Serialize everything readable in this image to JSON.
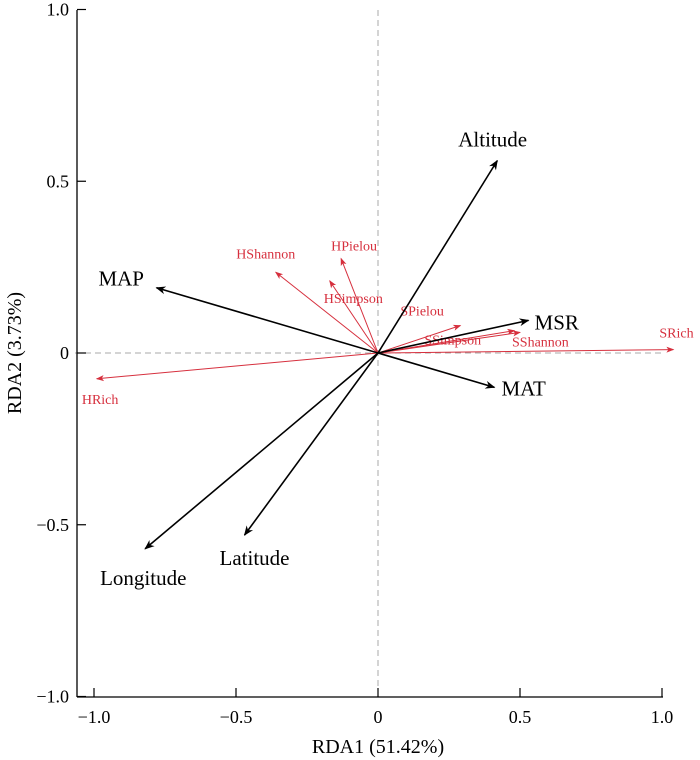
{
  "chart_data": {
    "type": "scatter",
    "subtype": "rda-biplot",
    "xlabel": "RDA1 (51.42%)",
    "ylabel": "RDA2 (3.73%)",
    "xlim": [
      -1.0,
      1.0
    ],
    "ylim": [
      -1.0,
      1.0
    ],
    "x_ticks": [
      -1.0,
      -0.5,
      0,
      0.5,
      1.0
    ],
    "y_ticks": [
      -1.0,
      -0.5,
      0,
      0.5,
      1.0
    ],
    "x_tick_labels": [
      "−1.0",
      "−0.5",
      "0",
      "0.5",
      "1.0"
    ],
    "y_tick_labels": [
      "−1.0",
      "−0.5",
      "0",
      "0.5",
      "1.0"
    ],
    "grid": false,
    "reference_lines": "dashed zero lines",
    "colors": {
      "environment": "#000000",
      "species": "#d62f3d",
      "reference": "#aaaaaa"
    },
    "environment_vectors": [
      {
        "name": "Altitude",
        "x": 0.42,
        "y": 0.56
      },
      {
        "name": "MAP",
        "x": -0.78,
        "y": 0.19
      },
      {
        "name": "MSR",
        "x": 0.53,
        "y": 0.095
      },
      {
        "name": "MAT",
        "x": 0.41,
        "y": -0.1
      },
      {
        "name": "Longitude",
        "x": -0.82,
        "y": -0.57
      },
      {
        "name": "Latitude",
        "x": -0.47,
        "y": -0.53
      }
    ],
    "species_vectors": [
      {
        "name": "HShannon",
        "x": -0.36,
        "y": 0.235
      },
      {
        "name": "HPielou",
        "x": -0.13,
        "y": 0.275
      },
      {
        "name": "HSimpson",
        "x": -0.17,
        "y": 0.21
      },
      {
        "name": "SPielou",
        "x": 0.29,
        "y": 0.08
      },
      {
        "name": "SSimpson",
        "x": 0.48,
        "y": 0.065
      },
      {
        "name": "SShannon",
        "x": 0.5,
        "y": 0.06
      },
      {
        "name": "SRich",
        "x": 1.04,
        "y": 0.01
      },
      {
        "name": "HRich",
        "x": -0.99,
        "y": -0.075
      }
    ]
  }
}
